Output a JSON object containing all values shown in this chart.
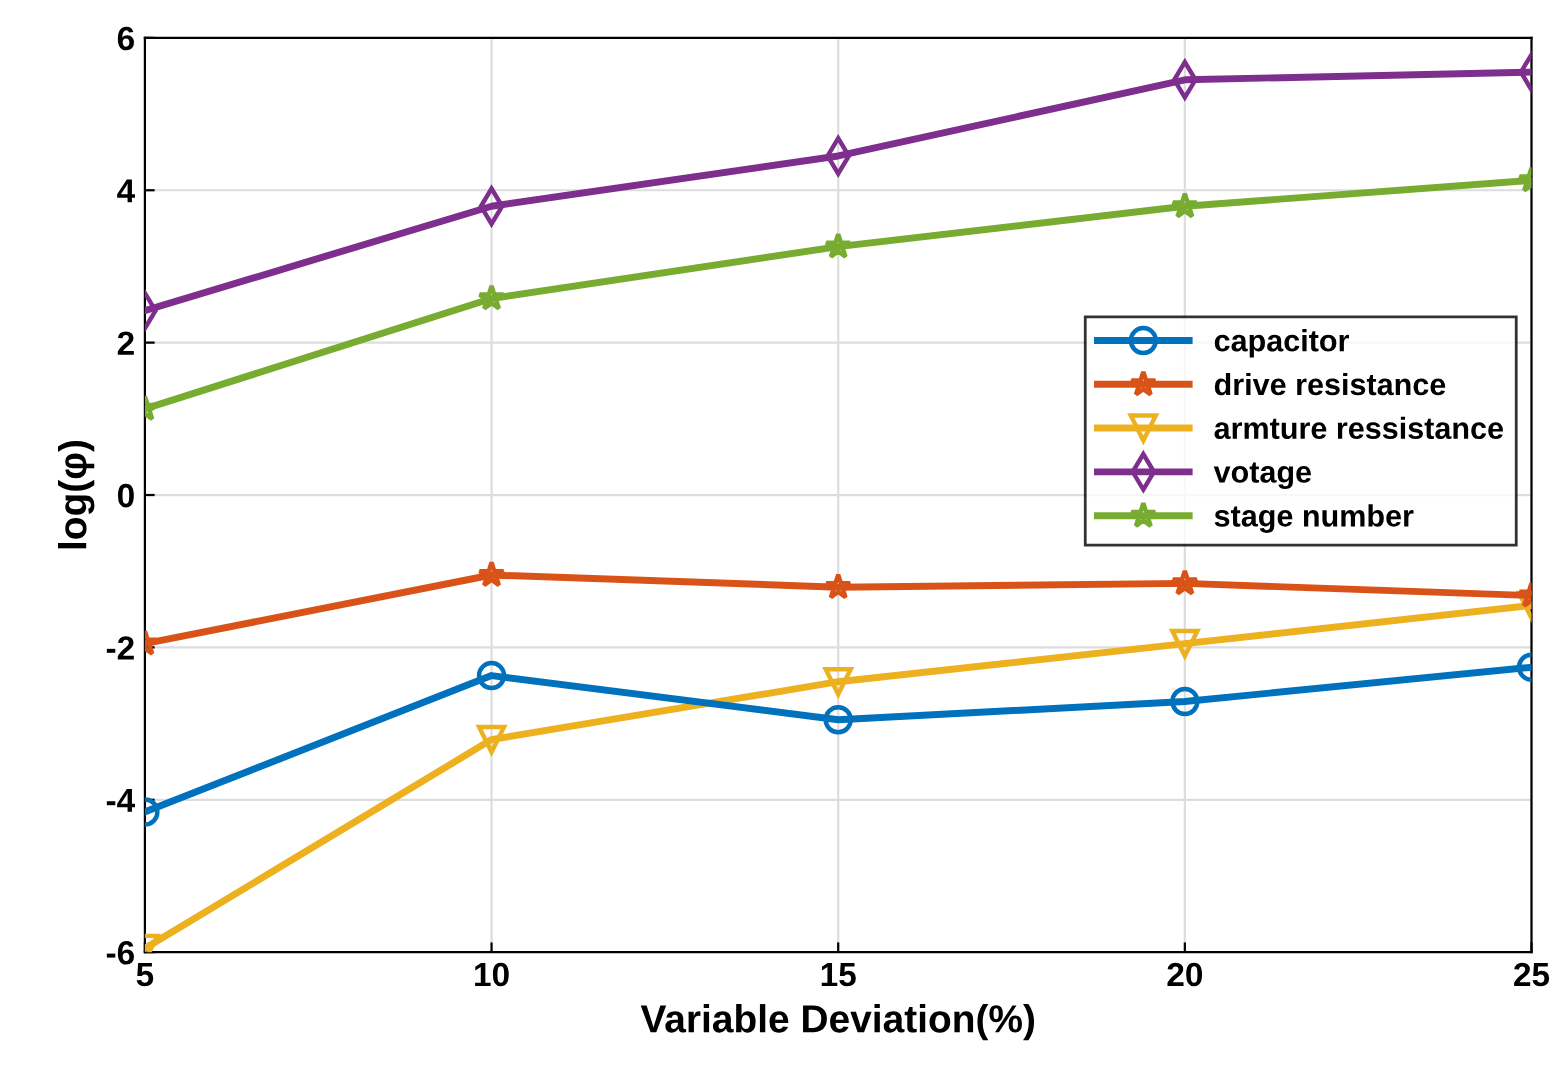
{
  "chart_data": {
    "type": "line",
    "xlabel": "Variable Deviation(%)",
    "ylabel": "log(φ)",
    "x": [
      5,
      10,
      15,
      20,
      25
    ],
    "series": [
      {
        "name": "capacitor",
        "color": "#0072bd",
        "marker": "circle",
        "values": [
          -4.16,
          -2.37,
          -2.95,
          -2.71,
          -2.26
        ]
      },
      {
        "name": "drive resistance",
        "color": "#d95319",
        "marker": "star",
        "values": [
          -1.95,
          -1.05,
          -1.21,
          -1.16,
          -1.32
        ]
      },
      {
        "name": "armture ressistance",
        "color": "#edb120",
        "marker": "triangle",
        "values": [
          -5.95,
          -3.21,
          -2.45,
          -1.95,
          -1.45
        ]
      },
      {
        "name": "votage",
        "color": "#7e2f8e",
        "marker": "diamond",
        "values": [
          2.42,
          3.79,
          4.45,
          5.45,
          5.55
        ]
      },
      {
        "name": "stage number",
        "color": "#77ac30",
        "marker": "star",
        "values": [
          1.13,
          2.58,
          3.26,
          3.79,
          4.13
        ]
      }
    ],
    "xlim": [
      5,
      25
    ],
    "ylim": [
      -6,
      6
    ],
    "xticks": [
      5,
      10,
      15,
      20,
      25
    ],
    "yticks": [
      -6,
      -4,
      -2,
      0,
      2,
      4,
      6
    ],
    "grid": true,
    "legend": "right",
    "line_style": "solid"
  }
}
